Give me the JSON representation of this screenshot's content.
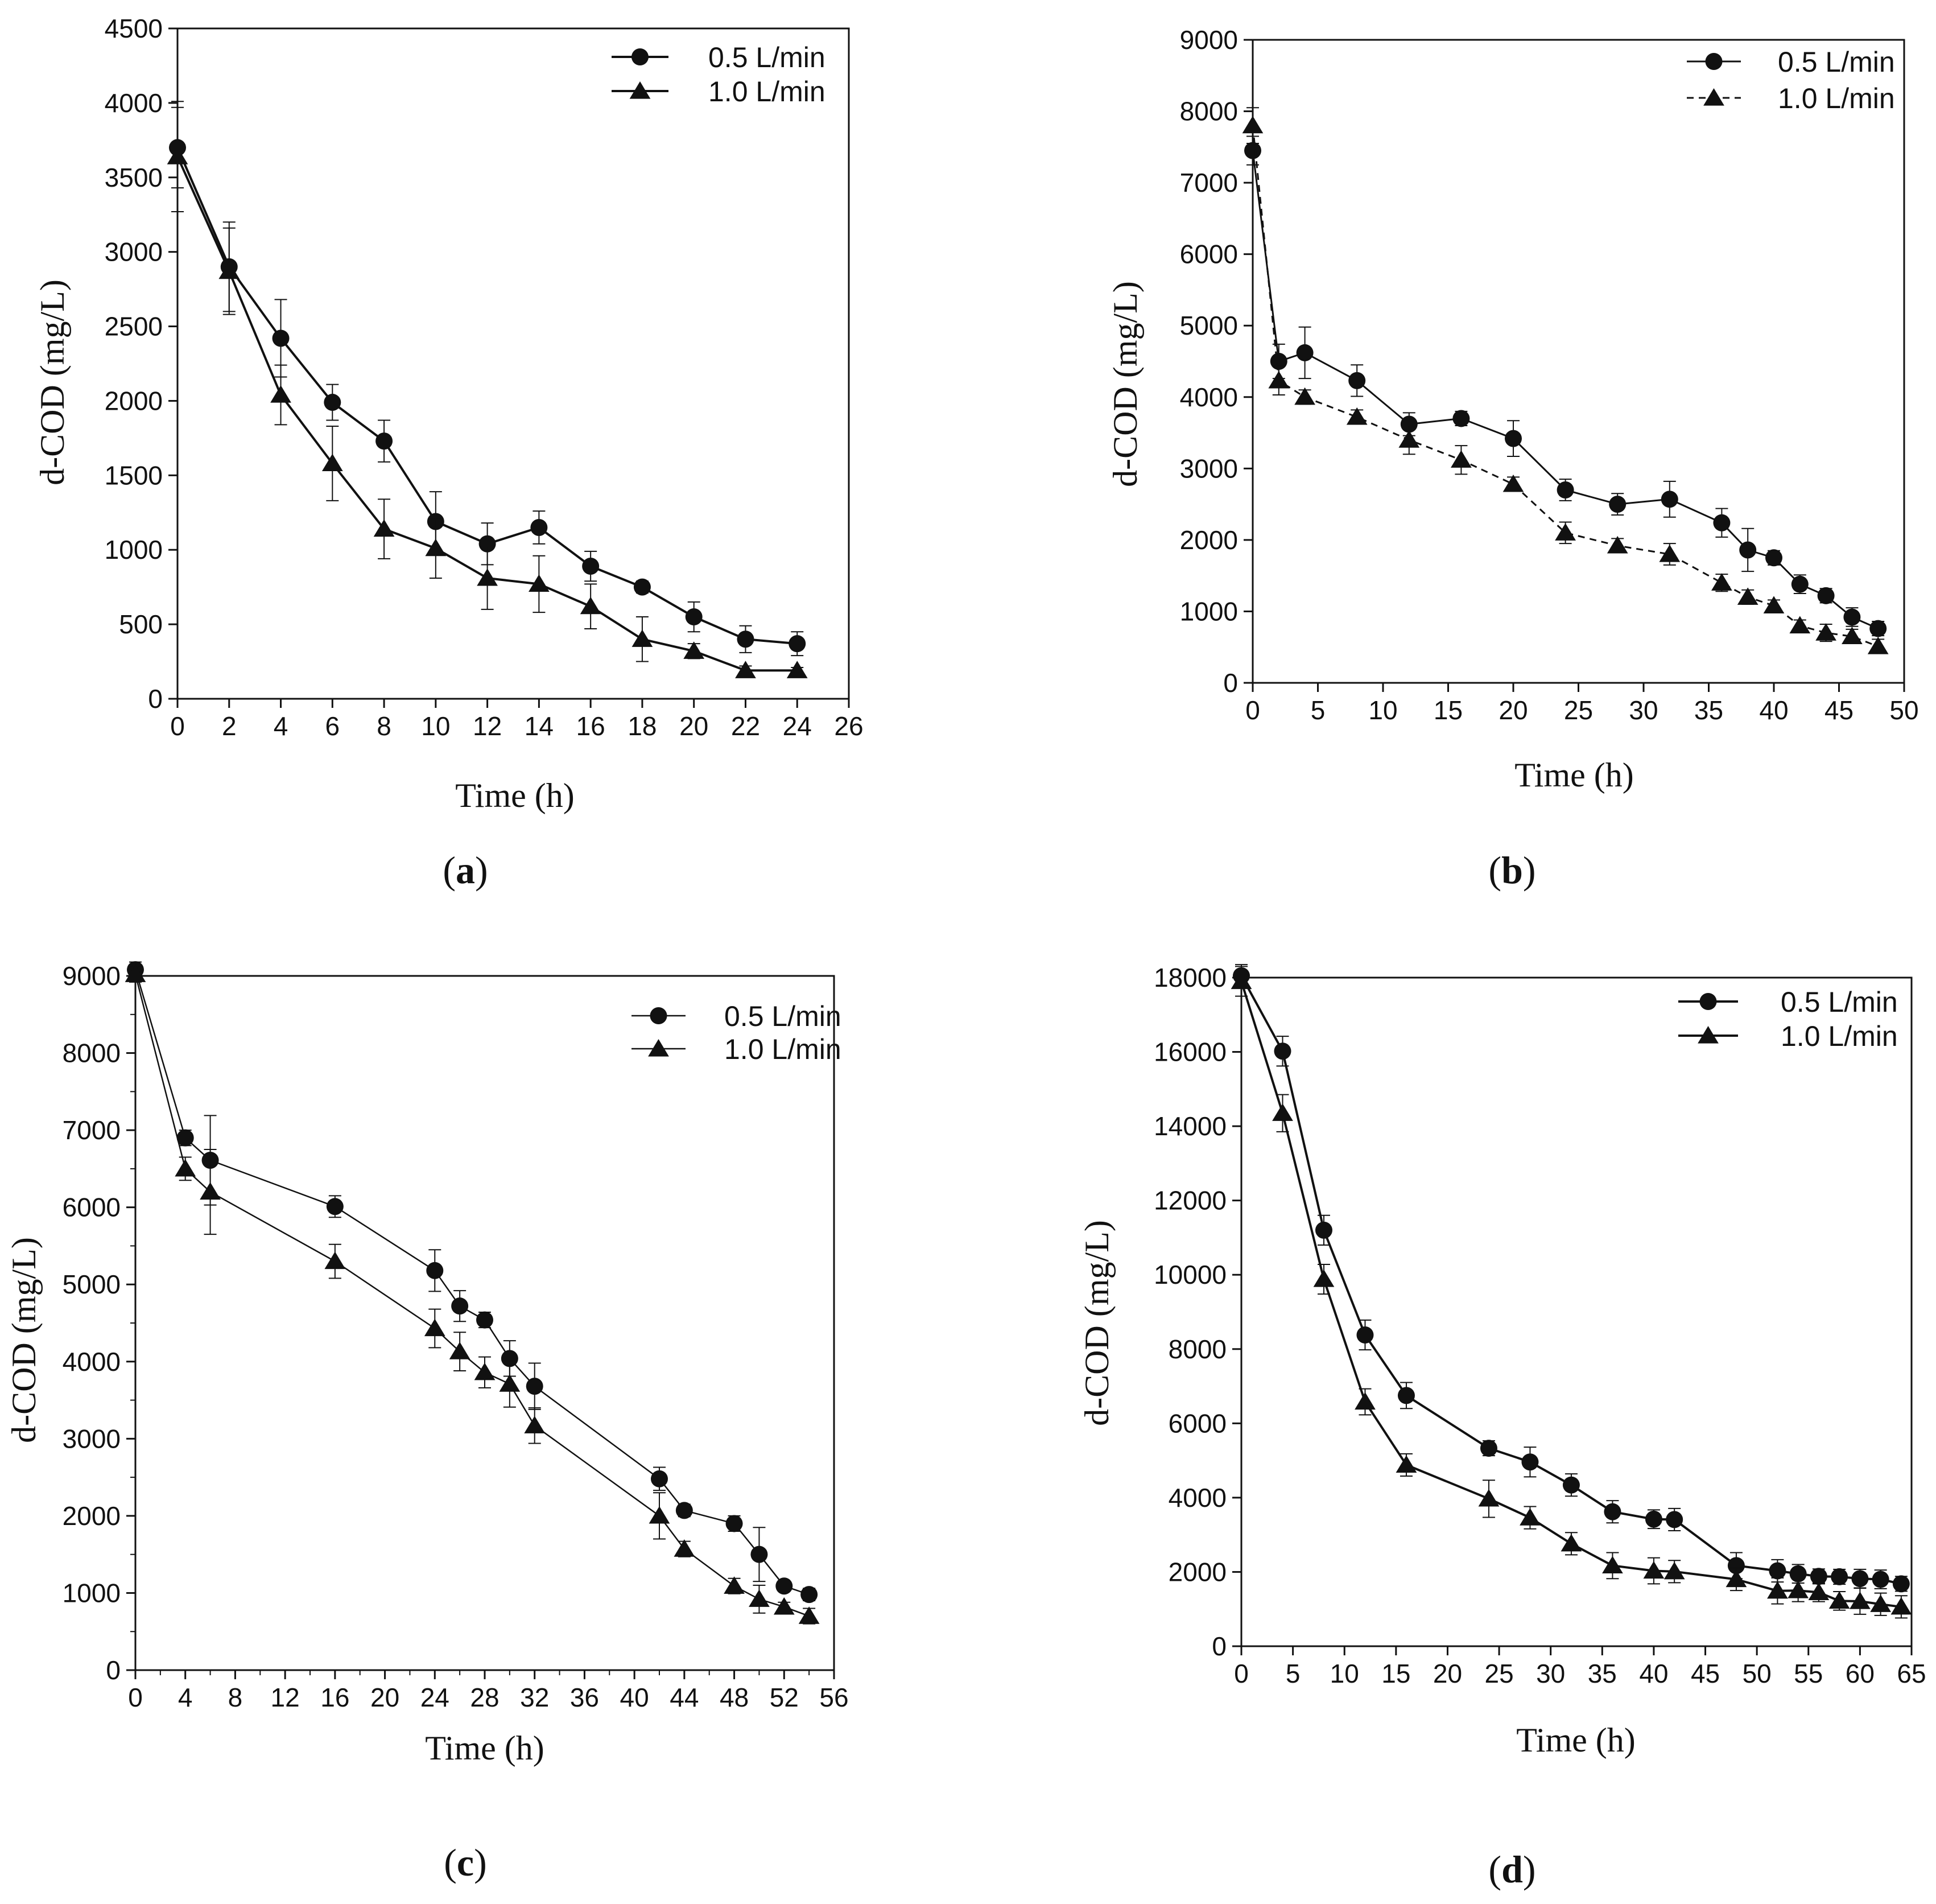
{
  "colors": {
    "ink": "#111111",
    "background": "#ffffff"
  },
  "chart_data": [
    {
      "panel": "(a)",
      "panel_text": "a",
      "type": "line",
      "xlabel": "Time (h)",
      "ylabel": "d-COD (mg/L)",
      "xlim": [
        0,
        26
      ],
      "ylim": [
        0,
        4500
      ],
      "xticks": [
        0,
        2,
        4,
        6,
        8,
        10,
        12,
        14,
        16,
        18,
        20,
        22,
        24,
        26
      ],
      "yticks": [
        0,
        500,
        1000,
        1500,
        2000,
        2500,
        3000,
        3500,
        4000,
        4500
      ],
      "legend_position": "top-right",
      "series": [
        {
          "name": "0.5 L/min",
          "marker": "circle",
          "x": [
            0,
            2,
            4,
            6,
            8,
            10,
            12,
            14,
            16,
            18,
            20,
            22,
            24
          ],
          "y": [
            3700,
            2900,
            2420,
            1990,
            1730,
            1190,
            1040,
            1150,
            890,
            750,
            550,
            400,
            370
          ],
          "err": [
            270,
            300,
            260,
            120,
            140,
            200,
            140,
            110,
            100,
            40,
            100,
            90,
            80
          ]
        },
        {
          "name": "1.0 L/min",
          "marker": "triangle",
          "x": [
            0,
            2,
            4,
            6,
            8,
            10,
            12,
            14,
            16,
            18,
            20,
            22,
            24
          ],
          "y": [
            3640,
            2870,
            2040,
            1580,
            1140,
            1010,
            810,
            770,
            620,
            400,
            320,
            190,
            190
          ],
          "err": [
            370,
            290,
            200,
            250,
            200,
            200,
            210,
            190,
            150,
            150,
            50,
            30,
            20
          ]
        }
      ]
    },
    {
      "panel": "(b)",
      "panel_text": "b",
      "type": "line",
      "xlabel": "Time (h)",
      "ylabel": "d-COD (mg/L)",
      "xlim": [
        0,
        50
      ],
      "ylim": [
        0,
        9000
      ],
      "xticks": [
        0,
        5,
        10,
        15,
        20,
        25,
        30,
        35,
        40,
        45,
        50
      ],
      "yticks": [
        0,
        1000,
        2000,
        3000,
        4000,
        5000,
        6000,
        7000,
        8000,
        9000
      ],
      "legend_position": "top-right",
      "series": [
        {
          "name": "0.5 L/min",
          "marker": "circle",
          "x": [
            0,
            2,
            4,
            8,
            12,
            16,
            20,
            24,
            28,
            32,
            36,
            38,
            40,
            42,
            44,
            46,
            48
          ],
          "y": [
            7450,
            4500,
            4620,
            4230,
            3620,
            3700,
            3420,
            2700,
            2500,
            2570,
            2240,
            1860,
            1750,
            1380,
            1220,
            920,
            760
          ],
          "err": [
            200,
            240,
            360,
            220,
            160,
            100,
            250,
            150,
            150,
            250,
            200,
            300,
            100,
            130,
            100,
            130,
            100
          ]
        },
        {
          "name": "1.0 L/min",
          "marker": "triangle",
          "x": [
            0,
            2,
            4,
            8,
            12,
            16,
            20,
            24,
            28,
            32,
            36,
            38,
            40,
            42,
            44,
            46,
            48
          ],
          "y": [
            7800,
            4230,
            4000,
            3720,
            3400,
            3120,
            2780,
            2100,
            1920,
            1800,
            1400,
            1200,
            1080,
            800,
            700,
            650,
            510
          ],
          "err": [
            250,
            200,
            100,
            100,
            200,
            200,
            100,
            150,
            100,
            150,
            120,
            100,
            80,
            80,
            120,
            100,
            100
          ]
        }
      ]
    },
    {
      "panel": "(c)",
      "panel_text": "c",
      "type": "line",
      "xlabel": "Time (h)",
      "ylabel": "d-COD (mg/L)",
      "xlim": [
        0,
        56
      ],
      "ylim": [
        0,
        9000
      ],
      "xticks": [
        0,
        4,
        8,
        12,
        16,
        20,
        24,
        28,
        32,
        36,
        40,
        44,
        48,
        52,
        56
      ],
      "yticks": [
        0,
        1000,
        2000,
        3000,
        4000,
        5000,
        6000,
        7000,
        8000,
        9000
      ],
      "legend_position": "top-right",
      "series": [
        {
          "name": "0.5 L/min",
          "marker": "circle",
          "x": [
            0,
            4,
            6,
            16,
            24,
            26,
            28,
            30,
            32,
            42,
            44,
            48,
            50,
            52,
            54
          ],
          "y": [
            9080,
            6900,
            6610,
            6010,
            5180,
            4720,
            4540,
            4040,
            3680,
            2480,
            2070,
            1900,
            1500,
            1090,
            980
          ],
          "err": [
            100,
            100,
            580,
            140,
            270,
            200,
            100,
            230,
            300,
            150,
            80,
            100,
            350,
            50,
            80
          ]
        },
        {
          "name": "1.0 L/min",
          "marker": "triangle",
          "x": [
            0,
            4,
            6,
            16,
            24,
            26,
            28,
            30,
            32,
            42,
            44,
            48,
            50,
            52,
            54
          ],
          "y": [
            9020,
            6500,
            6200,
            5300,
            4430,
            4130,
            3860,
            3710,
            3170,
            2000,
            1570,
            1090,
            920,
            820,
            700
          ],
          "err": [
            100,
            150,
            550,
            220,
            250,
            250,
            200,
            300,
            230,
            300,
            100,
            100,
            180,
            60,
            100
          ]
        }
      ]
    },
    {
      "panel": "(d)",
      "panel_text": "d",
      "type": "line",
      "xlabel": "Time (h)",
      "ylabel": "d-COD (mg/L)",
      "xlim": [
        0,
        65
      ],
      "ylim": [
        0,
        18000
      ],
      "xticks": [
        0,
        5,
        10,
        15,
        20,
        25,
        30,
        35,
        40,
        45,
        50,
        55,
        60,
        65
      ],
      "yticks": [
        0,
        2000,
        4000,
        6000,
        8000,
        10000,
        12000,
        14000,
        16000,
        18000
      ],
      "legend_position": "top-right",
      "series": [
        {
          "name": "0.5 L/min",
          "marker": "circle",
          "x": [
            0,
            4,
            8,
            12,
            16,
            24,
            28,
            32,
            36,
            40,
            42,
            48,
            52,
            54,
            56,
            58,
            60,
            62,
            64
          ],
          "y": [
            18050,
            16020,
            11200,
            8380,
            6750,
            5330,
            4960,
            4340,
            3620,
            3420,
            3410,
            2170,
            2030,
            1950,
            1880,
            1870,
            1820,
            1800,
            1680
          ],
          "err": [
            300,
            400,
            400,
            400,
            350,
            200,
            400,
            300,
            300,
            250,
            300,
            350,
            300,
            250,
            200,
            200,
            250,
            250,
            200
          ]
        },
        {
          "name": "1.0 L/min",
          "marker": "triangle",
          "x": [
            0,
            4,
            8,
            12,
            16,
            24,
            28,
            32,
            36,
            40,
            42,
            48,
            52,
            54,
            56,
            58,
            60,
            62,
            64
          ],
          "y": [
            17900,
            14350,
            9880,
            6580,
            4880,
            3970,
            3460,
            2760,
            2170,
            2030,
            2010,
            1800,
            1490,
            1500,
            1450,
            1220,
            1210,
            1130,
            1060
          ],
          "err": [
            400,
            500,
            400,
            350,
            300,
            500,
            300,
            300,
            350,
            350,
            300,
            300,
            350,
            300,
            250,
            250,
            350,
            300,
            300
          ]
        }
      ]
    }
  ]
}
